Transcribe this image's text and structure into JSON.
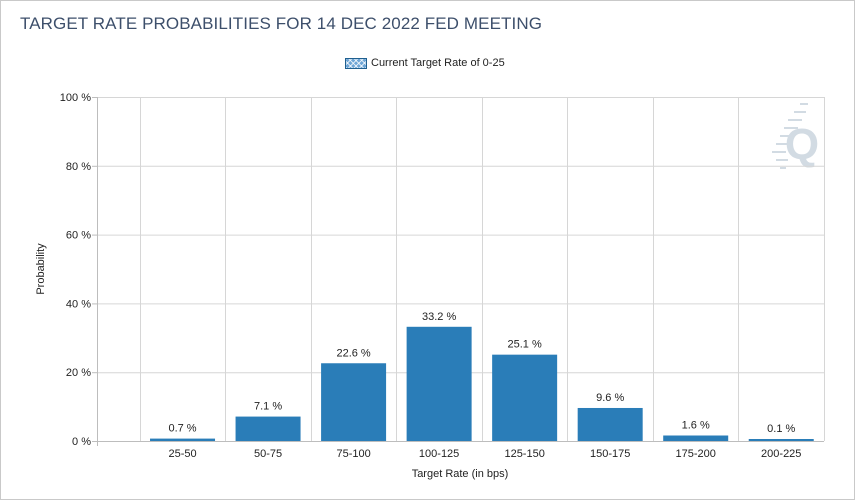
{
  "title": "TARGET RATE PROBABILITIES FOR 14 DEC 2022 FED MEETING",
  "legend": {
    "label": "Current Target Rate of 0-25"
  },
  "watermark": {
    "letter": "Q"
  },
  "colors": {
    "bar": "#2a7db8",
    "grid": "#d6d6d6",
    "title": "#3d4f6b",
    "watermark": "#d2dbe3"
  },
  "chart_data": {
    "type": "bar",
    "title": "TARGET RATE PROBABILITIES FOR 14 DEC 2022 FED MEETING",
    "xlabel": "Target Rate (in bps)",
    "ylabel": "Probability",
    "categories": [
      "25-50",
      "50-75",
      "75-100",
      "100-125",
      "125-150",
      "150-175",
      "175-200",
      "200-225"
    ],
    "series": [
      {
        "name": "Current Target Rate of 0-25",
        "values": [
          0.7,
          7.1,
          22.6,
          33.2,
          25.1,
          9.6,
          1.6,
          0.1
        ],
        "labels": [
          "0.7 %",
          "7.1 %",
          "22.6 %",
          "33.2 %",
          "25.1 %",
          "9.6 %",
          "1.6 %",
          "0.1 %"
        ]
      }
    ],
    "ylim": [
      0,
      100
    ],
    "yticks": [
      0,
      20,
      40,
      60,
      80,
      100
    ],
    "ytick_labels": [
      "0 %",
      "20 %",
      "40 %",
      "60 %",
      "80 %",
      "100 %"
    ],
    "grid": true,
    "legend_position": "top-center"
  }
}
